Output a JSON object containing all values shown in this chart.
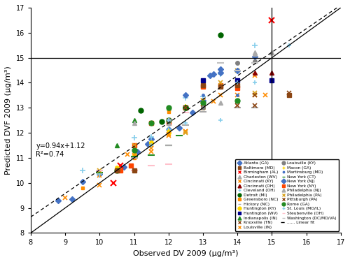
{
  "xlabel": "Observed DV 2009 (μg/m³)",
  "ylabel": "Predicted DVF 2009 (μg/m³)",
  "xlim": [
    8,
    17
  ],
  "ylim": [
    8,
    17
  ],
  "xticks": [
    8,
    9,
    10,
    11,
    12,
    13,
    14,
    15,
    16,
    17
  ],
  "yticks": [
    8,
    9,
    10,
    11,
    12,
    13,
    14,
    15,
    16,
    17
  ],
  "hline": 15,
  "vline": 15,
  "fit_label": "y=0.94x+1.12\nR²=0.74",
  "fit_slope": 0.94,
  "fit_intercept": 1.12,
  "series": [
    {
      "name": "Atlanta (GA)",
      "color": "#4472C4",
      "marker": "D",
      "markersize": 4,
      "points": [
        [
          8.8,
          9.3
        ],
        [
          9.2,
          9.35
        ],
        [
          9.5,
          10.05
        ],
        [
          10.0,
          10.35
        ],
        [
          10.7,
          10.65
        ],
        [
          11.1,
          11.25
        ],
        [
          11.4,
          11.55
        ],
        [
          11.5,
          11.75
        ],
        [
          12.0,
          12.15
        ],
        [
          12.3,
          12.2
        ],
        [
          12.7,
          12.8
        ],
        [
          13.0,
          13.3
        ],
        [
          13.2,
          14.3
        ],
        [
          13.3,
          14.35
        ],
        [
          13.5,
          14.55
        ],
        [
          14.5,
          15.05
        ]
      ]
    },
    {
      "name": "Birmingham (AL)",
      "color": "#FF0000",
      "marker": "x",
      "markersize": 6,
      "mew": 1.5,
      "points": [
        [
          10.4,
          10.0
        ],
        [
          10.6,
          10.7
        ],
        [
          15.0,
          16.5
        ]
      ]
    },
    {
      "name": "Cincinnati (KY)",
      "color": "#FF8C00",
      "marker": "x",
      "markersize": 5,
      "mew": 1.2,
      "points": [
        [
          9.0,
          9.4
        ],
        [
          10.0,
          10.3
        ],
        [
          10.8,
          11.15
        ],
        [
          11.0,
          11.05
        ],
        [
          11.5,
          11.25
        ],
        [
          12.0,
          11.9
        ],
        [
          12.5,
          12.05
        ],
        [
          13.0,
          13.0
        ],
        [
          13.3,
          13.25
        ],
        [
          14.0,
          13.5
        ],
        [
          14.5,
          13.5
        ],
        [
          14.8,
          13.5
        ]
      ]
    },
    {
      "name": "Cleveland (OH)",
      "color": "#87CEEB",
      "marker": "+",
      "markersize": 6,
      "mew": 1.2,
      "points": [
        [
          9.5,
          10.5
        ],
        [
          10.0,
          10.35
        ],
        [
          11.0,
          11.8
        ],
        [
          11.5,
          11.85
        ],
        [
          12.0,
          12.15
        ],
        [
          12.5,
          13.4
        ],
        [
          13.0,
          13.45
        ],
        [
          13.5,
          14.35
        ],
        [
          14.0,
          14.45
        ],
        [
          14.5,
          15.5
        ]
      ]
    },
    {
      "name": "Greensboro (NC)",
      "color": "#FF8C00",
      "marker": "s",
      "markersize": 3,
      "points": [
        [
          9.5,
          9.8
        ],
        [
          10.5,
          10.6
        ],
        [
          11.0,
          11.0
        ],
        [
          11.5,
          11.5
        ],
        [
          12.0,
          12.85
        ]
      ]
    },
    {
      "name": "Huntington (KY)",
      "color": "#FFD700",
      "marker": "o",
      "markersize": 4,
      "points": [
        [
          10.5,
          10.6
        ],
        [
          11.0,
          11.1
        ],
        [
          11.5,
          11.6
        ],
        [
          12.0,
          12.0
        ],
        [
          12.5,
          13.0
        ],
        [
          13.0,
          13.0
        ]
      ]
    },
    {
      "name": "Indianapolis (IN)",
      "color": "#228B22",
      "marker": "^",
      "markersize": 5,
      "points": [
        [
          10.5,
          11.5
        ],
        [
          11.0,
          12.5
        ],
        [
          12.0,
          13.0
        ],
        [
          13.0,
          13.2
        ],
        [
          14.0,
          13.3
        ]
      ]
    },
    {
      "name": "Louisville (IN)",
      "color": "#FF8C00",
      "marker": "x",
      "markersize": 5,
      "mew": 1.2,
      "points": [
        [
          10.0,
          9.9
        ],
        [
          11.0,
          11.1
        ],
        [
          11.5,
          11.4
        ],
        [
          12.0,
          11.95
        ],
        [
          12.5,
          12.05
        ],
        [
          13.0,
          13.3
        ],
        [
          13.5,
          13.5
        ],
        [
          14.0,
          14.0
        ],
        [
          14.5,
          14.3
        ]
      ]
    },
    {
      "name": "Macon (GA)",
      "color": "#FFD700",
      "marker": "+",
      "markersize": 5,
      "mew": 1.2,
      "points": [
        [
          11.5,
          11.5
        ],
        [
          12.0,
          12.1
        ],
        [
          12.5,
          13.05
        ],
        [
          13.0,
          13.1
        ]
      ]
    },
    {
      "name": "New York (CT)",
      "color": "#228B22",
      "marker": "_",
      "markersize": 7,
      "mew": 1.5,
      "points": [
        [
          10.0,
          10.4
        ],
        [
          11.0,
          11.05
        ],
        [
          11.5,
          11.1
        ],
        [
          12.0,
          11.5
        ],
        [
          12.3,
          11.9
        ]
      ]
    },
    {
      "name": "New York (NY)",
      "color": "#FF4500",
      "marker": "s",
      "markersize": 5,
      "points": [
        [
          10.6,
          10.5
        ],
        [
          10.9,
          10.7
        ],
        [
          11.0,
          11.5
        ],
        [
          11.5,
          12.4
        ],
        [
          12.0,
          12.4
        ],
        [
          12.5,
          13.0
        ],
        [
          13.0,
          13.85
        ],
        [
          13.5,
          13.9
        ],
        [
          14.0,
          13.8
        ]
      ]
    },
    {
      "name": "Philadelphia (PA)",
      "color": "#DAA520",
      "marker": "x",
      "markersize": 5,
      "mew": 1.2,
      "points": [
        [
          10.0,
          10.5
        ],
        [
          11.0,
          11.5
        ],
        [
          12.0,
          12.5
        ],
        [
          12.5,
          12.0
        ],
        [
          13.0,
          13.3
        ],
        [
          13.5,
          14.0
        ],
        [
          14.0,
          14.5
        ],
        [
          14.5,
          13.6
        ]
      ]
    },
    {
      "name": "Rome (GA)",
      "color": "#228B22",
      "marker": "o",
      "markersize": 5,
      "points": [
        [
          10.5,
          10.5
        ],
        [
          11.0,
          11.3
        ],
        [
          11.5,
          12.4
        ],
        [
          12.0,
          13.0
        ],
        [
          12.5,
          13.0
        ],
        [
          13.0,
          13.2
        ],
        [
          14.0,
          13.3
        ]
      ]
    },
    {
      "name": "Steubenville (OH)",
      "color": "#FFC0CB",
      "marker": "_",
      "markersize": 7,
      "mew": 1.5,
      "points": [
        [
          10.0,
          10.5
        ],
        [
          11.0,
          10.5
        ],
        [
          11.5,
          10.7
        ],
        [
          12.0,
          10.75
        ],
        [
          12.5,
          12.8
        ],
        [
          13.0,
          12.85
        ]
      ]
    },
    {
      "name": "Baltimore (MD)",
      "color": "#8B4513",
      "marker": "s",
      "markersize": 5,
      "points": [
        [
          10.5,
          10.5
        ],
        [
          11.0,
          10.5
        ],
        [
          12.5,
          13.0
        ],
        [
          13.0,
          13.9
        ],
        [
          13.5,
          13.85
        ],
        [
          14.0,
          13.9
        ],
        [
          15.5,
          13.5
        ]
      ]
    },
    {
      "name": "Charleston (WV)",
      "color": "#A9A9A9",
      "marker": "^",
      "markersize": 5,
      "points": [
        [
          11.0,
          12.4
        ],
        [
          12.0,
          12.4
        ],
        [
          13.5,
          13.2
        ],
        [
          14.5,
          15.15
        ],
        [
          15.0,
          15.2
        ]
      ]
    },
    {
      "name": "Cincinnati (OH)",
      "color": "#8B0000",
      "marker": "^",
      "markersize": 5,
      "points": [
        [
          14.5,
          14.4
        ],
        [
          15.0,
          14.4
        ]
      ]
    },
    {
      "name": "Detroit (MI)",
      "color": "#006400",
      "marker": "o",
      "markersize": 5,
      "points": [
        [
          11.2,
          12.9
        ],
        [
          11.8,
          12.45
        ],
        [
          12.0,
          12.5
        ],
        [
          12.5,
          13.0
        ],
        [
          13.5,
          15.9
        ]
      ]
    },
    {
      "name": "Hickory (NC)",
      "color": "#A9A9A9",
      "marker": "_",
      "markersize": 7,
      "mew": 1.5,
      "points": [
        [
          11.0,
          11.0
        ],
        [
          12.0,
          11.5
        ],
        [
          12.5,
          12.3
        ],
        [
          13.0,
          12.85
        ],
        [
          14.0,
          13.0
        ],
        [
          14.5,
          13.0
        ]
      ]
    },
    {
      "name": "Huntington (WV)",
      "color": "#00008B",
      "marker": "s",
      "markersize": 5,
      "points": [
        [
          13.0,
          14.1
        ],
        [
          14.0,
          14.1
        ],
        [
          15.0,
          14.1
        ]
      ]
    },
    {
      "name": "Knoxville (TN)",
      "color": "#8B4513",
      "marker": "x",
      "markersize": 5,
      "mew": 1.2,
      "points": [
        [
          12.5,
          13.0
        ],
        [
          13.0,
          13.0
        ],
        [
          14.0,
          13.1
        ],
        [
          14.5,
          13.1
        ]
      ]
    },
    {
      "name": "Louisville (KY)",
      "color": "#808080",
      "marker": "o",
      "markersize": 4,
      "points": [
        [
          12.0,
          12.5
        ],
        [
          13.0,
          13.0
        ],
        [
          14.0,
          14.8
        ],
        [
          14.5,
          14.85
        ]
      ]
    },
    {
      "name": "Martinsburg (MD)",
      "color": "#4472C4",
      "marker": ".",
      "markersize": 5,
      "points": [
        [
          12.5,
          13.5
        ],
        [
          13.0,
          13.5
        ],
        [
          14.0,
          13.5
        ]
      ]
    },
    {
      "name": "New York (NJ)",
      "color": "#4472C4",
      "marker": "D",
      "markersize": 4,
      "points": [
        [
          12.5,
          13.5
        ],
        [
          13.5,
          14.4
        ],
        [
          14.0,
          14.5
        ]
      ]
    },
    {
      "name": "Philadelphia (NJ)",
      "color": "#A9A9A9",
      "marker": "^",
      "markersize": 5,
      "points": [
        [
          14.5,
          15.2
        ],
        [
          15.0,
          15.2
        ]
      ]
    },
    {
      "name": "Pittsburgh (PA)",
      "color": "#8B4513",
      "marker": "x",
      "markersize": 5,
      "mew": 1.2,
      "points": [
        [
          14.5,
          13.5
        ],
        [
          15.5,
          13.6
        ]
      ]
    },
    {
      "name": "St. Louis (MO/IL)",
      "color": "#87CEEB",
      "marker": "+",
      "markersize": 5,
      "mew": 1.2,
      "points": [
        [
          11.5,
          11.5
        ],
        [
          12.0,
          12.5
        ],
        [
          12.5,
          12.4
        ],
        [
          13.5,
          12.5
        ],
        [
          14.0,
          14.0
        ],
        [
          14.5,
          14.0
        ],
        [
          15.5,
          15.5
        ]
      ]
    },
    {
      "name": "Washington (DC/MD/VA)",
      "color": "#C0C0C0",
      "marker": "_",
      "markersize": 7,
      "mew": 1.5,
      "points": [
        [
          13.5,
          14.8
        ],
        [
          14.0,
          14.5
        ],
        [
          14.5,
          14.8
        ]
      ]
    }
  ],
  "legend_col1": [
    {
      "name": "Atlanta (GA)",
      "color": "#4472C4",
      "marker": "D"
    },
    {
      "name": "Birmingham (AL)",
      "color": "#FF0000",
      "marker": "x"
    },
    {
      "name": "Cincinnati (KY)",
      "color": "#FF8C00",
      "marker": "x"
    },
    {
      "name": "Cleveland (OH)",
      "color": "#87CEEB",
      "marker": "+"
    },
    {
      "name": "Greensboro (NC)",
      "color": "#FF8C00",
      "marker": "s"
    },
    {
      "name": "Huntington (KY)",
      "color": "#FFD700",
      "marker": "o"
    },
    {
      "name": "Indianapolis (IN)",
      "color": "#228B22",
      "marker": "^"
    },
    {
      "name": "Louisville (IN)",
      "color": "#FF8C00",
      "marker": "x"
    },
    {
      "name": "Macon (GA)",
      "color": "#FFD700",
      "marker": "+"
    },
    {
      "name": "New York (CT)",
      "color": "#228B22",
      "marker": "_"
    },
    {
      "name": "New York (NY)",
      "color": "#FF4500",
      "marker": "s"
    },
    {
      "name": "Philadelphia (PA)",
      "color": "#DAA520",
      "marker": "x"
    },
    {
      "name": "Rome (GA)",
      "color": "#228B22",
      "marker": "o"
    },
    {
      "name": "Steubenville (OH)",
      "color": "#FFC0CB",
      "marker": "_"
    },
    {
      "name": "...... Linear fit",
      "color": "black",
      "marker": "none",
      "linestyle": "--"
    }
  ],
  "legend_col2": [
    {
      "name": "Baltimore (MD)",
      "color": "#8B4513",
      "marker": "s"
    },
    {
      "name": "Charleston (WV)",
      "color": "#A9A9A9",
      "marker": "^"
    },
    {
      "name": "Cincinnati (OH)",
      "color": "#8B0000",
      "marker": "^"
    },
    {
      "name": "Detroit (MI)",
      "color": "#006400",
      "marker": "o"
    },
    {
      "name": "Hickory (NC)",
      "color": "#A9A9A9",
      "marker": "_"
    },
    {
      "name": "Huntington (WV)",
      "color": "#00008B",
      "marker": "s"
    },
    {
      "name": "Knoxville (TN)",
      "color": "#8B4513",
      "marker": "x"
    },
    {
      "name": "Louisville (KY)",
      "color": "#808080",
      "marker": "o"
    },
    {
      "name": "Martinsburg (MD)",
      "color": "#4472C4",
      "marker": "."
    },
    {
      "name": "New York (NJ)",
      "color": "#4472C4",
      "marker": "D"
    },
    {
      "name": "Philadelphia (NJ)",
      "color": "#A9A9A9",
      "marker": "^"
    },
    {
      "name": "Pittsburgh (PA)",
      "color": "#8B4513",
      "marker": "x"
    },
    {
      "name": "St. Louis (MO/IL)",
      "color": "#87CEEB",
      "marker": "+"
    },
    {
      "name": "Washington (DC/MD/VA)",
      "color": "#C0C0C0",
      "marker": "_"
    }
  ]
}
